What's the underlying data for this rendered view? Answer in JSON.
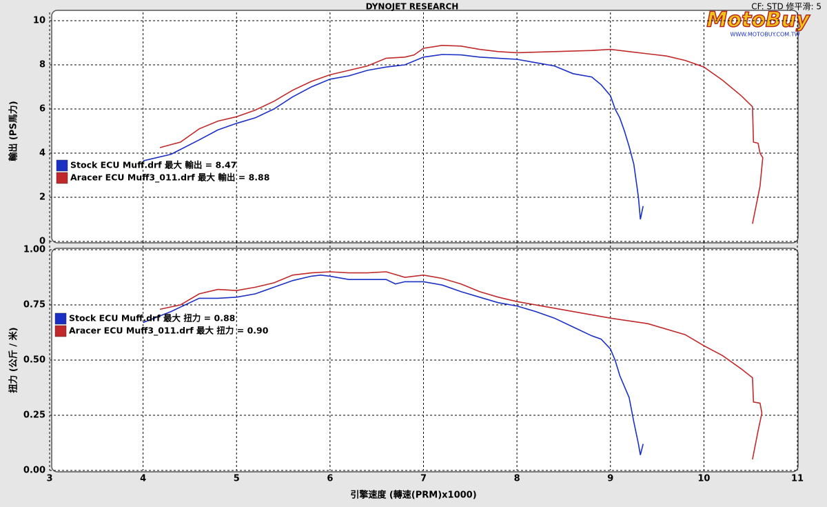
{
  "header": {
    "settings": "CF: STD  修平滑: 5",
    "logo": "MotoBuy",
    "logo_url": "WWW.MOTOBUY.COM.TW"
  },
  "chart_data": [
    {
      "type": "line",
      "title": "DYNOJET RESEARCH",
      "ylabel": "輸出 (PS馬力)",
      "xlim": [
        3,
        11
      ],
      "xticks": [
        3,
        4,
        5,
        6,
        7,
        8,
        9,
        10,
        11
      ],
      "ylim": [
        0,
        10
      ],
      "yticks": [
        0,
        2,
        4,
        6,
        8,
        10
      ],
      "grid": true,
      "series": [
        {
          "name": "Stock ECU Muff.drf 最大 輸出 = 8.47",
          "color": "#1a2fc4",
          "x": [
            4.0,
            4.3,
            4.6,
            4.8,
            5.0,
            5.2,
            5.4,
            5.6,
            5.8,
            6.0,
            6.2,
            6.4,
            6.6,
            6.8,
            7.0,
            7.2,
            7.4,
            7.6,
            7.8,
            8.0,
            8.2,
            8.4,
            8.6,
            8.8,
            8.9,
            9.0,
            9.05,
            9.1,
            9.15,
            9.2,
            9.25,
            9.3,
            9.32,
            9.35
          ],
          "values": [
            3.65,
            3.95,
            4.6,
            5.05,
            5.35,
            5.6,
            6.0,
            6.55,
            7.0,
            7.35,
            7.5,
            7.75,
            7.9,
            8.0,
            8.35,
            8.47,
            8.45,
            8.35,
            8.3,
            8.25,
            8.1,
            7.95,
            7.6,
            7.45,
            7.1,
            6.6,
            6.0,
            5.6,
            5.0,
            4.3,
            3.5,
            2.0,
            1.0,
            1.6
          ]
        },
        {
          "name": "Aracer ECU Muff3_011.drf 最大 輸出 = 8.88",
          "color": "#c0282a",
          "x": [
            4.18,
            4.4,
            4.6,
            4.8,
            5.0,
            5.2,
            5.4,
            5.6,
            5.8,
            6.0,
            6.2,
            6.4,
            6.6,
            6.8,
            6.9,
            7.0,
            7.2,
            7.4,
            7.6,
            7.8,
            8.0,
            8.4,
            8.8,
            9.0,
            9.2,
            9.4,
            9.6,
            9.8,
            10.0,
            10.2,
            10.4,
            10.52,
            10.53,
            10.58,
            10.6,
            10.63,
            10.6,
            10.52
          ],
          "values": [
            4.25,
            4.5,
            5.1,
            5.45,
            5.65,
            5.95,
            6.35,
            6.85,
            7.25,
            7.55,
            7.75,
            7.95,
            8.3,
            8.35,
            8.45,
            8.75,
            8.88,
            8.85,
            8.7,
            8.6,
            8.55,
            8.6,
            8.65,
            8.7,
            8.6,
            8.5,
            8.4,
            8.2,
            7.9,
            7.3,
            6.6,
            6.1,
            4.5,
            4.45,
            4.0,
            3.8,
            2.5,
            0.8
          ]
        }
      ]
    },
    {
      "type": "line",
      "ylabel": "扭力 (公斤 / 米)",
      "xlabel": "引擎速度 (轉速(PRM)x1000)",
      "xlim": [
        3,
        11
      ],
      "xticks": [
        3,
        4,
        5,
        6,
        7,
        8,
        9,
        10,
        11
      ],
      "ylim": [
        0,
        1
      ],
      "yticks": [
        {
          "value": 0,
          "label": "0.00"
        },
        {
          "value": 0.25,
          "label": "0.25"
        },
        {
          "value": 0.5,
          "label": "0.50"
        },
        {
          "value": 0.75,
          "label": "0.75"
        },
        {
          "value": 1,
          "label": "1.00"
        }
      ],
      "grid": true,
      "series": [
        {
          "name": "Stock ECU Muff.drf 最大 扭力 = 0.88",
          "color": "#1a2fc4",
          "x": [
            4.0,
            4.3,
            4.6,
            4.8,
            5.0,
            5.2,
            5.4,
            5.6,
            5.8,
            5.9,
            6.0,
            6.2,
            6.4,
            6.6,
            6.7,
            6.8,
            7.0,
            7.2,
            7.4,
            7.6,
            7.8,
            8.0,
            8.2,
            8.4,
            8.6,
            8.8,
            8.9,
            9.0,
            9.05,
            9.1,
            9.15,
            9.2,
            9.25,
            9.3,
            9.32,
            9.35
          ],
          "values": [
            0.67,
            0.72,
            0.78,
            0.78,
            0.785,
            0.8,
            0.83,
            0.86,
            0.88,
            0.885,
            0.88,
            0.865,
            0.865,
            0.865,
            0.845,
            0.855,
            0.855,
            0.84,
            0.81,
            0.785,
            0.76,
            0.745,
            0.72,
            0.69,
            0.65,
            0.61,
            0.595,
            0.55,
            0.5,
            0.43,
            0.38,
            0.33,
            0.22,
            0.12,
            0.07,
            0.12
          ]
        },
        {
          "name": "Aracer ECU Muff3_011.drf 最大 扭力 = 0.90",
          "color": "#c0282a",
          "x": [
            4.18,
            4.4,
            4.6,
            4.8,
            5.0,
            5.2,
            5.4,
            5.6,
            5.8,
            6.0,
            6.2,
            6.4,
            6.6,
            6.8,
            7.0,
            7.2,
            7.4,
            7.6,
            7.8,
            8.0,
            8.4,
            8.8,
            9.0,
            9.4,
            9.8,
            10.0,
            10.2,
            10.4,
            10.52,
            10.53,
            10.6,
            10.62,
            10.58,
            10.52
          ],
          "values": [
            0.73,
            0.75,
            0.8,
            0.82,
            0.815,
            0.83,
            0.85,
            0.885,
            0.895,
            0.9,
            0.895,
            0.895,
            0.9,
            0.875,
            0.885,
            0.87,
            0.845,
            0.81,
            0.785,
            0.765,
            0.735,
            0.705,
            0.69,
            0.665,
            0.615,
            0.565,
            0.52,
            0.46,
            0.42,
            0.31,
            0.305,
            0.26,
            0.18,
            0.05
          ]
        }
      ]
    }
  ]
}
